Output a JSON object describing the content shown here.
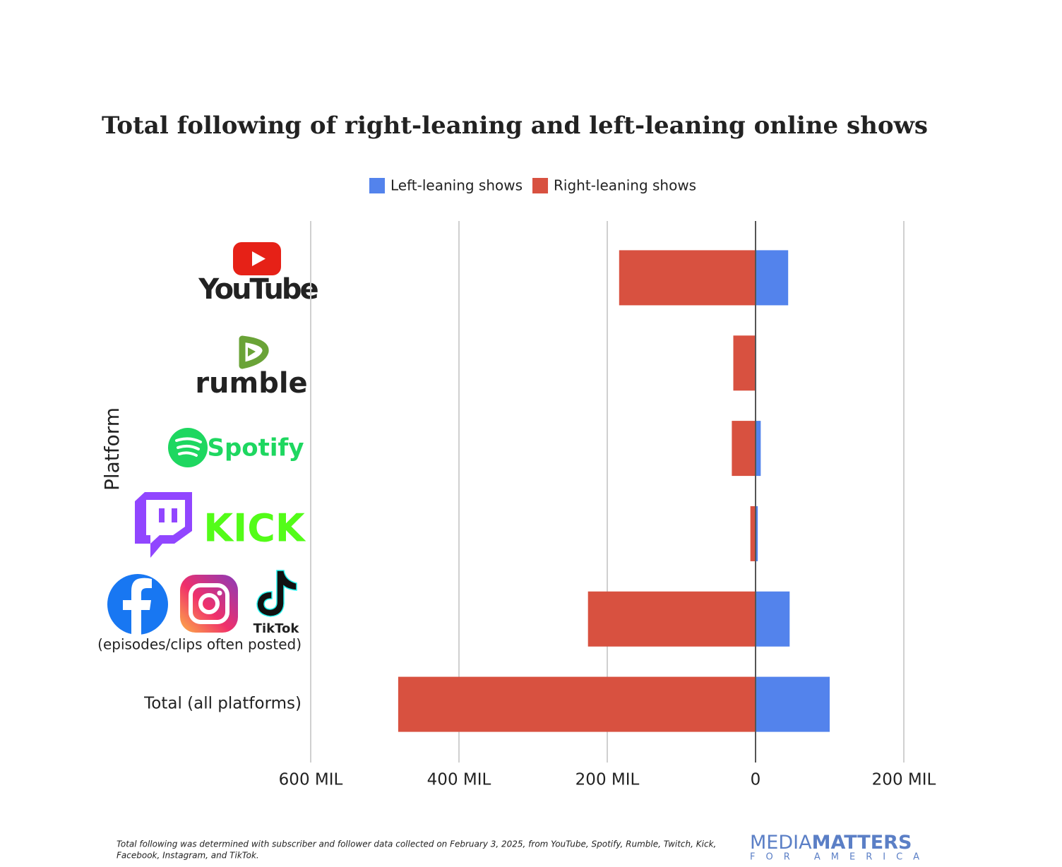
{
  "chart_data": {
    "type": "bar",
    "title": "Total following of right-leaning and left-leaning online shows",
    "y_label": "Platform",
    "categories": [
      "YouTube",
      "rumble",
      "Spotify",
      "KICK",
      "TikTok",
      "Total (all platforms)"
    ],
    "category_note": "(episodes/clips often posted)",
    "series": [
      {
        "name": "Left-leaning shows",
        "color": "#5383ec",
        "values": [
          44,
          1,
          7,
          3,
          46,
          100
        ]
      },
      {
        "name": "Right-leaning shows",
        "color": "#d85140",
        "values": [
          -184,
          -30,
          -32,
          -7,
          -226,
          -482
        ]
      }
    ],
    "xlim": [
      -600,
      200
    ],
    "xticks": [
      {
        "value": -600,
        "label": "600 MIL"
      },
      {
        "value": -400,
        "label": "400 MIL"
      },
      {
        "value": -200,
        "label": "200 MIL"
      },
      0,
      {
        "value": 200,
        "label": "200 MIL"
      }
    ],
    "grid": true,
    "legend": "top",
    "footnote": [
      "Total following was determined with subscriber and follower data collected on February 3, 2025, from YouTube, Spotify, Rumble, Twitch, Kick,",
      "Facebook, Instagram, and TikTok."
    ],
    "brand": {
      "first": "MEDIA",
      "second": "MATTERS",
      "sub": "FOR AMERICA"
    }
  }
}
